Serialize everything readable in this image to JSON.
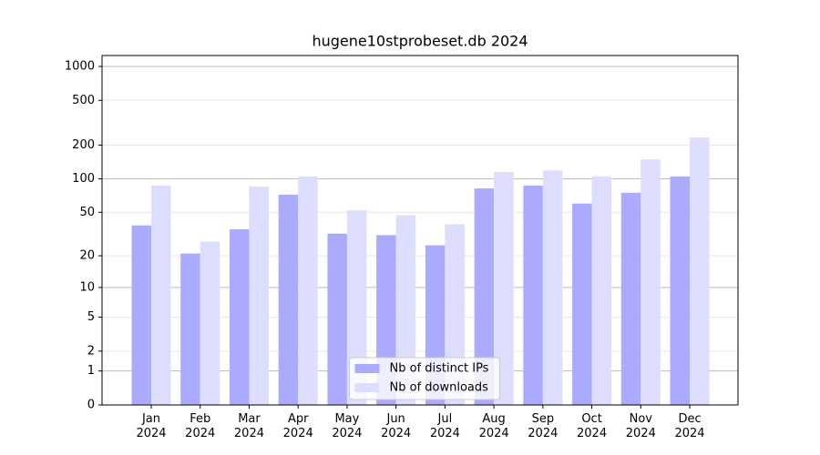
{
  "chart_data": {
    "type": "bar",
    "title": "hugene10stprobeset.db 2024",
    "categories": [
      "Jan\n2024",
      "Feb\n2024",
      "Mar\n2024",
      "Apr\n2024",
      "May\n2024",
      "Jun\n2024",
      "Jul\n2024",
      "Aug\n2024",
      "Sep\n2024",
      "Oct\n2024",
      "Nov\n2024",
      "Dec\n2024"
    ],
    "series": [
      {
        "name": "Nb of distinct IPs",
        "color": "#aaaaff",
        "values": [
          38,
          21,
          35,
          72,
          32,
          31,
          25,
          82,
          87,
          60,
          75,
          105
        ]
      },
      {
        "name": "Nb of downloads",
        "color": "#ddddff",
        "values": [
          87,
          27,
          85,
          105,
          52,
          47,
          39,
          115,
          119,
          105,
          149,
          234
        ]
      }
    ],
    "yscale": "log1p",
    "ylim": [
      0,
      1250
    ],
    "yticks": [
      0,
      1,
      2,
      5,
      10,
      20,
      50,
      100,
      200,
      500,
      1000
    ],
    "grid": true,
    "legend": "lower center"
  }
}
